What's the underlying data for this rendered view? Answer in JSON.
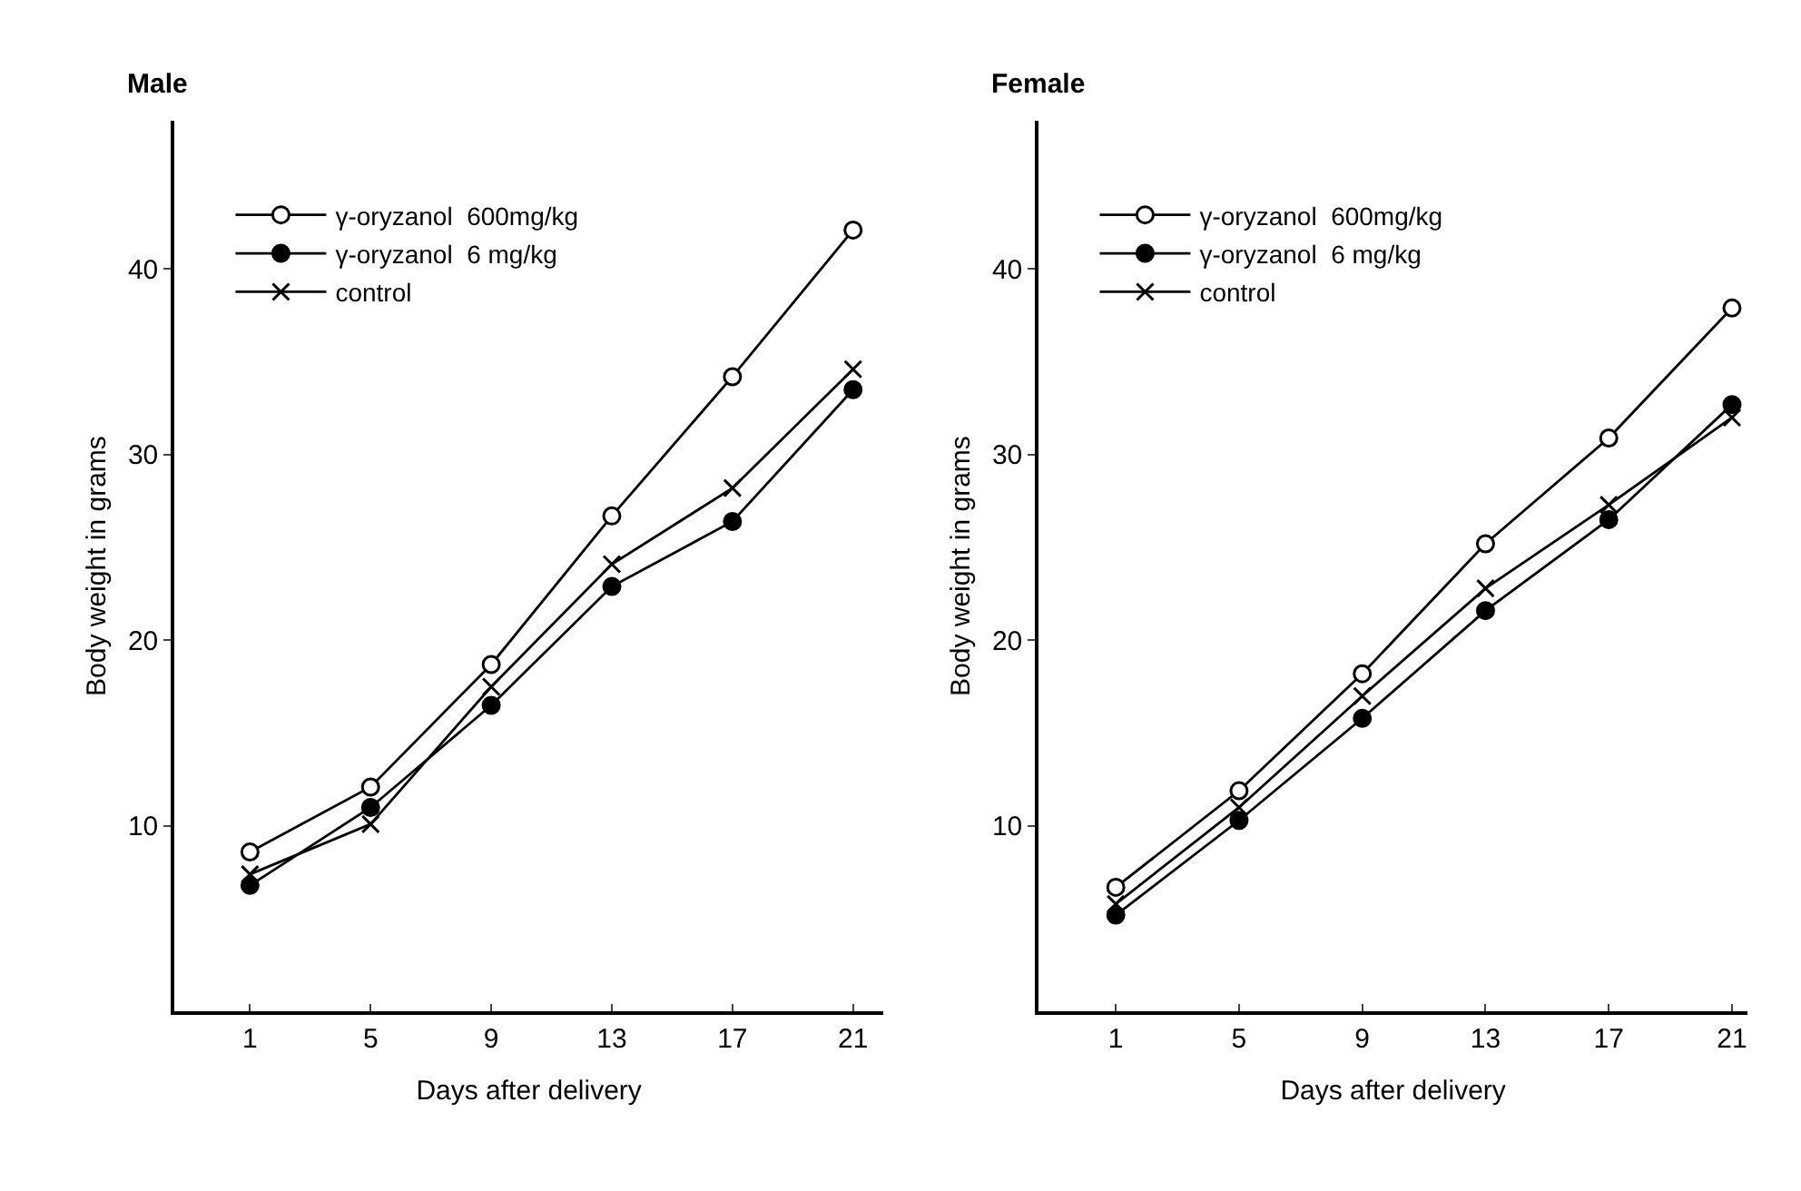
{
  "chart_data": [
    {
      "type": "line",
      "title": "Male",
      "xlabel": "Days after delivery",
      "ylabel": "Body weight in grams",
      "x": [
        1,
        5,
        9,
        13,
        17,
        21
      ],
      "xlim": [
        -1.5,
        22
      ],
      "xticks": [
        1,
        5,
        9,
        13,
        17,
        21
      ],
      "ylim": [
        0,
        48
      ],
      "yticks": [
        10,
        20,
        30,
        40
      ],
      "legend": "top left",
      "line_style": "solid",
      "series": [
        {
          "name": "γ-oryzanol  600mg/kg",
          "color": "#000000",
          "marker": "circle-open",
          "values": [
            8.6,
            12.1,
            18.7,
            26.7,
            34.2,
            42.1
          ]
        },
        {
          "name": "γ-oryzanol  6 mg/kg",
          "color": "#000000",
          "marker": "circle",
          "values": [
            6.8,
            11.0,
            16.5,
            22.9,
            26.4,
            33.5
          ]
        },
        {
          "name": "control",
          "color": "#000000",
          "marker": "cross",
          "values": [
            7.4,
            10.1,
            17.5,
            24.1,
            28.2,
            34.6
          ]
        }
      ]
    },
    {
      "type": "line",
      "title": "Female",
      "xlabel": "Days after delivery",
      "ylabel": "Body weight in grams",
      "x": [
        1,
        5,
        9,
        13,
        17,
        21
      ],
      "xlim": [
        -1.5,
        21.5
      ],
      "xticks": [
        1,
        5,
        9,
        13,
        17,
        21
      ],
      "ylim": [
        0,
        48
      ],
      "yticks": [
        10,
        20,
        30,
        40
      ],
      "legend": "top left",
      "line_style": "solid",
      "series": [
        {
          "name": "γ-oryzanol  600mg/kg",
          "color": "#000000",
          "marker": "circle-open",
          "values": [
            6.7,
            11.9,
            18.2,
            25.2,
            30.9,
            37.9
          ]
        },
        {
          "name": "γ-oryzanol  6 mg/kg",
          "color": "#000000",
          "marker": "circle",
          "values": [
            5.2,
            10.3,
            15.8,
            21.6,
            26.5,
            32.7
          ]
        },
        {
          "name": "control",
          "color": "#000000",
          "marker": "cross",
          "values": [
            5.8,
            11.0,
            17.0,
            22.8,
            27.3,
            32.0
          ]
        }
      ]
    }
  ]
}
